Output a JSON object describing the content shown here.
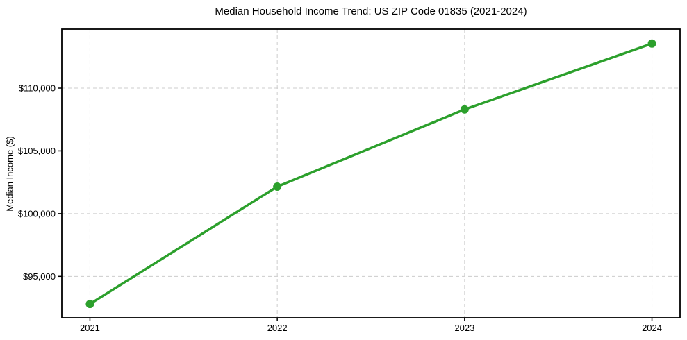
{
  "chart_data": {
    "type": "line",
    "title": "Median Household Income Trend: US ZIP Code 01835 (2021-2024)",
    "xlabel": "",
    "ylabel": "Median Income ($)",
    "x": [
      2021,
      2022,
      2023,
      2024
    ],
    "x_tick_labels": [
      "2021",
      "2022",
      "2023",
      "2024"
    ],
    "series": [
      {
        "name": "Median Household Income",
        "values": [
          92800,
          102150,
          108300,
          113550
        ]
      }
    ],
    "y_ticks": [
      95000,
      100000,
      105000,
      110000
    ],
    "y_tick_labels": [
      "$95,000",
      "$100,000",
      "$105,000",
      "$110,000"
    ],
    "xlim": [
      2020.85,
      2024.15
    ],
    "ylim": [
      91700,
      114700
    ],
    "grid": true,
    "grid_style": "dashed",
    "legend_position": "none",
    "colors": {
      "line": "#2ca02c",
      "marker": "#2ca02c",
      "grid": "#cccccc",
      "spine": "#000000",
      "background": "#ffffff"
    }
  }
}
